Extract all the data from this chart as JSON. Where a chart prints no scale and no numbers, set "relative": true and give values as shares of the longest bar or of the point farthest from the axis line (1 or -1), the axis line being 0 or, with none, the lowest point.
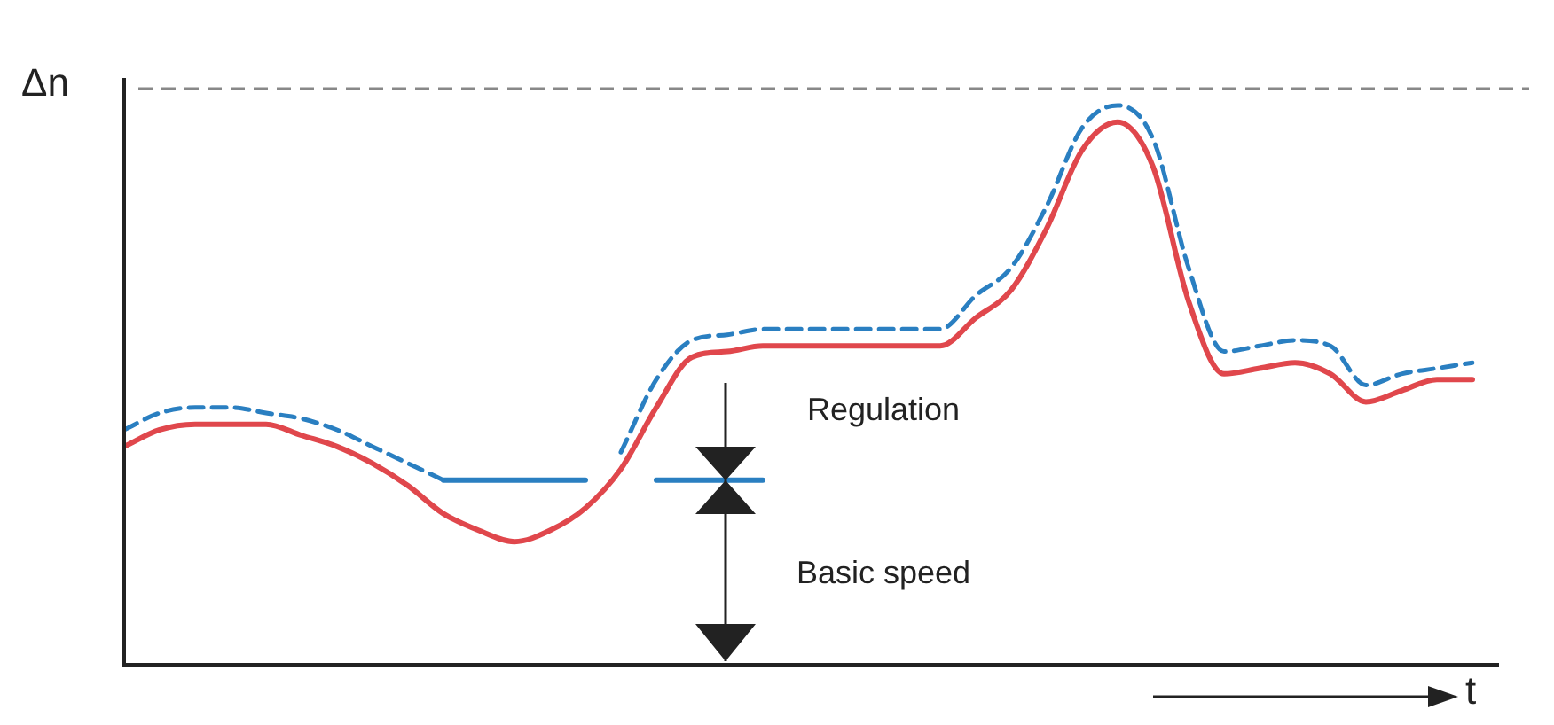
{
  "chart_data": {
    "type": "line",
    "relative": true,
    "xlabel": "t",
    "ylabel": "Δn",
    "categories": [
      null,
      null,
      null,
      null,
      null,
      null,
      null,
      null,
      null,
      null,
      null,
      null,
      null,
      null,
      null,
      null,
      null,
      null,
      null,
      null,
      null,
      null,
      null,
      null,
      null,
      null,
      null,
      null,
      null,
      null,
      null,
      null,
      null,
      null,
      null,
      null,
      null,
      null,
      null
    ],
    "series": [
      {
        "color": "#e0474c",
        "line_style": "solid",
        "values": [
          0.39,
          0.42,
          0.43,
          0.43,
          0.43,
          0.41,
          0.39,
          0.36,
          0.32,
          0.27,
          0.24,
          0.22,
          0.24,
          0.28,
          0.35,
          0.46,
          0.55,
          0.56,
          0.57,
          0.57,
          0.57,
          0.57,
          0.57,
          0.57,
          0.62,
          0.67,
          0.78,
          0.92,
          0.97,
          0.89,
          0.65,
          0.52,
          0.53,
          0.54,
          0.52,
          0.47,
          0.49,
          0.51,
          0.51
        ]
      },
      {
        "color": "#2a7fc1",
        "line_style": "dashed",
        "values": [
          0.42,
          0.45,
          0.46,
          0.46,
          0.45,
          0.44,
          0.42,
          0.39,
          0.36,
          0.33,
          null,
          null,
          null,
          null,
          0.38,
          0.51,
          0.58,
          0.59,
          0.6,
          0.6,
          0.6,
          0.6,
          0.6,
          0.6,
          0.66,
          0.71,
          0.82,
          0.96,
          1,
          0.94,
          0.71,
          0.56,
          0.57,
          0.58,
          0.57,
          0.5,
          0.52,
          0.53,
          0.54
        ]
      },
      {
        "color": "#2a7fc1",
        "line_style": "solid",
        "values": [
          null,
          null,
          null,
          null,
          null,
          null,
          null,
          null,
          null,
          0.33,
          0.33,
          0.33,
          0.33,
          0.33,
          null,
          0.33,
          0.33,
          0.33,
          0.33,
          null,
          null,
          null,
          null,
          null,
          null,
          null,
          null,
          null,
          null,
          null,
          null,
          null,
          null,
          null,
          null,
          null,
          null,
          null,
          null
        ]
      }
    ],
    "ref_lines": [
      {
        "axis": "y",
        "value": 1.03,
        "color": "#888888",
        "line_style": "dashed"
      }
    ],
    "annotations": [
      "Regulation",
      "Basic speed"
    ],
    "marker": "none",
    "legend": false
  }
}
